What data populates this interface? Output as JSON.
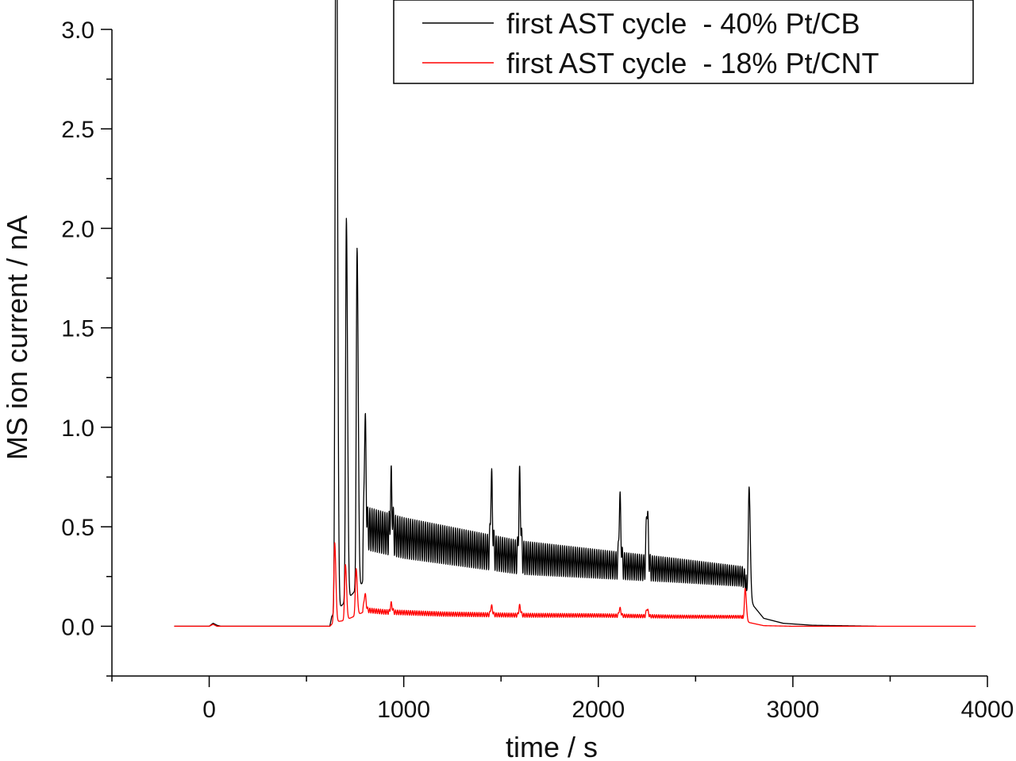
{
  "chart_data": {
    "type": "line",
    "xlabel": "time / s",
    "ylabel": "MS ion current / nA",
    "xlim": [
      -500,
      4000
    ],
    "ylim": [
      -0.25,
      3.0
    ],
    "x_ticks": [
      0,
      1000,
      2000,
      3000,
      4000
    ],
    "x_minor_step": 500,
    "y_ticks": [
      0.0,
      0.5,
      1.0,
      1.5,
      2.0,
      2.5,
      3.0
    ],
    "y_tick_labels": [
      "0.0",
      "0.5",
      "1.0",
      "1.5",
      "2.0",
      "2.5",
      "3.0"
    ],
    "x_tick_labels": [
      "0",
      "1000",
      "2000",
      "3000",
      "4000"
    ],
    "legend_position": "top-right",
    "series": [
      {
        "name": "first AST cycle  - 40% Pt/CB",
        "color": "#000000",
        "start": -180,
        "end": 3430,
        "base_points": [
          [
            -180,
            0
          ],
          [
            0,
            0
          ],
          [
            20,
            0.015
          ],
          [
            40,
            0.005
          ],
          [
            60,
            0
          ],
          [
            620,
            0
          ],
          [
            630,
            0.05
          ],
          [
            790,
            0.22
          ],
          [
            820,
            0.38
          ],
          [
            1000,
            0.34
          ],
          [
            1300,
            0.3
          ],
          [
            1600,
            0.26
          ],
          [
            2000,
            0.24
          ],
          [
            2400,
            0.22
          ],
          [
            2740,
            0.2
          ],
          [
            2760,
            0.18
          ],
          [
            2800,
            0.1
          ],
          [
            2850,
            0.04
          ],
          [
            2950,
            0.015
          ],
          [
            3100,
            0.005
          ],
          [
            3430,
            0
          ]
        ],
        "oscillation": {
          "start": 790,
          "end": 2760,
          "amp_start": 0.22,
          "amp_end": 0.1,
          "period": 11
        },
        "peaks": [
          [
            650,
            2.65
          ],
          [
            655,
            2.32
          ],
          [
            705,
            2.05
          ],
          [
            760,
            1.9
          ],
          [
            800,
            0.92
          ],
          [
            935,
            0.6
          ],
          [
            1450,
            0.64
          ],
          [
            1595,
            0.64
          ],
          [
            2110,
            0.56
          ],
          [
            2250,
            0.54
          ],
          [
            2775,
            0.7
          ]
        ]
      },
      {
        "name": "first AST cycle  - 18% Pt/CNT",
        "color": "#ff0000",
        "start": -180,
        "end": 3940,
        "base_points": [
          [
            -180,
            0
          ],
          [
            0,
            0
          ],
          [
            20,
            0.01
          ],
          [
            40,
            0
          ],
          [
            620,
            0
          ],
          [
            640,
            0.02
          ],
          [
            700,
            0.03
          ],
          [
            790,
            0.07
          ],
          [
            900,
            0.06
          ],
          [
            1200,
            0.05
          ],
          [
            1600,
            0.045
          ],
          [
            2000,
            0.045
          ],
          [
            2400,
            0.04
          ],
          [
            2740,
            0.04
          ],
          [
            2770,
            0.02
          ],
          [
            2850,
            0.003
          ],
          [
            3000,
            0
          ],
          [
            3940,
            0
          ]
        ],
        "oscillation": {
          "start": 790,
          "end": 2740,
          "amp_start": 0.025,
          "amp_end": 0.015,
          "period": 11
        },
        "peaks": [
          [
            645,
            0.42
          ],
          [
            700,
            0.31
          ],
          [
            755,
            0.29
          ],
          [
            800,
            0.15
          ],
          [
            935,
            0.1
          ],
          [
            1450,
            0.09
          ],
          [
            1595,
            0.09
          ],
          [
            2110,
            0.08
          ],
          [
            2250,
            0.08
          ],
          [
            2755,
            0.19
          ]
        ]
      }
    ]
  }
}
